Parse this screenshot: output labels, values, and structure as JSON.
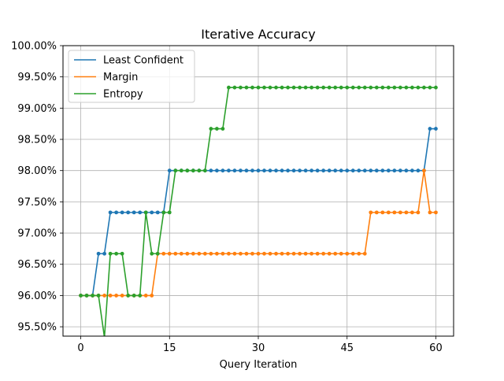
{
  "chart_data": {
    "type": "line",
    "title": "Iterative Accuracy",
    "xlabel": "Query Iteration",
    "ylabel": "",
    "xlim": [
      -3,
      63
    ],
    "ylim": [
      95.35,
      100.0
    ],
    "xticks": [
      0,
      15,
      30,
      45,
      60
    ],
    "xtick_labels": [
      "0",
      "15",
      "30",
      "45",
      "60"
    ],
    "yticks": [
      95.5,
      96.0,
      96.5,
      97.0,
      97.5,
      98.0,
      98.5,
      99.0,
      99.5,
      100.0
    ],
    "ytick_labels": [
      "95.50%",
      "96.00%",
      "96.50%",
      "97.00%",
      "97.50%",
      "98.00%",
      "98.50%",
      "99.00%",
      "99.50%",
      "100.00%"
    ],
    "grid": true,
    "legend_position": "top-left",
    "series": [
      {
        "name": "Least Confident",
        "color": "#1f77b4",
        "x": [
          0,
          1,
          2,
          3,
          4,
          5,
          6,
          7,
          8,
          9,
          10,
          11,
          12,
          13,
          14,
          15,
          16,
          17,
          18,
          19,
          20,
          21,
          22,
          23,
          24,
          25,
          26,
          27,
          28,
          29,
          30,
          31,
          32,
          33,
          34,
          35,
          36,
          37,
          38,
          39,
          40,
          41,
          42,
          43,
          44,
          45,
          46,
          47,
          48,
          49,
          50,
          51,
          52,
          53,
          54,
          55,
          56,
          57,
          58,
          59,
          60
        ],
        "values": [
          96.0,
          96.0,
          96.0,
          96.67,
          96.67,
          97.33,
          97.33,
          97.33,
          97.33,
          97.33,
          97.33,
          97.33,
          97.33,
          97.33,
          97.33,
          98.0,
          98.0,
          98.0,
          98.0,
          98.0,
          98.0,
          98.0,
          98.0,
          98.0,
          98.0,
          98.0,
          98.0,
          98.0,
          98.0,
          98.0,
          98.0,
          98.0,
          98.0,
          98.0,
          98.0,
          98.0,
          98.0,
          98.0,
          98.0,
          98.0,
          98.0,
          98.0,
          98.0,
          98.0,
          98.0,
          98.0,
          98.0,
          98.0,
          98.0,
          98.0,
          98.0,
          98.0,
          98.0,
          98.0,
          98.0,
          98.0,
          98.0,
          98.0,
          98.0,
          98.67,
          98.67
        ]
      },
      {
        "name": "Margin",
        "color": "#ff7f0e",
        "x": [
          0,
          1,
          2,
          3,
          4,
          5,
          6,
          7,
          8,
          9,
          10,
          11,
          12,
          13,
          14,
          15,
          16,
          17,
          18,
          19,
          20,
          21,
          22,
          23,
          24,
          25,
          26,
          27,
          28,
          29,
          30,
          31,
          32,
          33,
          34,
          35,
          36,
          37,
          38,
          39,
          40,
          41,
          42,
          43,
          44,
          45,
          46,
          47,
          48,
          49,
          50,
          51,
          52,
          53,
          54,
          55,
          56,
          57,
          58,
          59,
          60
        ],
        "values": [
          96.0,
          96.0,
          96.0,
          96.0,
          96.0,
          96.0,
          96.0,
          96.0,
          96.0,
          96.0,
          96.0,
          96.0,
          96.0,
          96.67,
          96.67,
          96.67,
          96.67,
          96.67,
          96.67,
          96.67,
          96.67,
          96.67,
          96.67,
          96.67,
          96.67,
          96.67,
          96.67,
          96.67,
          96.67,
          96.67,
          96.67,
          96.67,
          96.67,
          96.67,
          96.67,
          96.67,
          96.67,
          96.67,
          96.67,
          96.67,
          96.67,
          96.67,
          96.67,
          96.67,
          96.67,
          96.67,
          96.67,
          96.67,
          96.67,
          97.33,
          97.33,
          97.33,
          97.33,
          97.33,
          97.33,
          97.33,
          97.33,
          97.33,
          98.0,
          97.33,
          97.33
        ]
      },
      {
        "name": "Entropy",
        "color": "#2ca02c",
        "x": [
          0,
          1,
          2,
          3,
          4,
          5,
          6,
          7,
          8,
          9,
          10,
          11,
          12,
          13,
          14,
          15,
          16,
          17,
          18,
          19,
          20,
          21,
          22,
          23,
          24,
          25,
          26,
          27,
          28,
          29,
          30,
          31,
          32,
          33,
          34,
          35,
          36,
          37,
          38,
          39,
          40,
          41,
          42,
          43,
          44,
          45,
          46,
          47,
          48,
          49,
          50,
          51,
          52,
          53,
          54,
          55,
          56,
          57,
          58,
          59,
          60
        ],
        "values": [
          96.0,
          96.0,
          96.0,
          96.0,
          95.33,
          96.67,
          96.67,
          96.67,
          96.0,
          96.0,
          96.0,
          97.33,
          96.67,
          96.67,
          97.33,
          97.33,
          98.0,
          98.0,
          98.0,
          98.0,
          98.0,
          98.0,
          98.67,
          98.67,
          98.67,
          99.33,
          99.33,
          99.33,
          99.33,
          99.33,
          99.33,
          99.33,
          99.33,
          99.33,
          99.33,
          99.33,
          99.33,
          99.33,
          99.33,
          99.33,
          99.33,
          99.33,
          99.33,
          99.33,
          99.33,
          99.33,
          99.33,
          99.33,
          99.33,
          99.33,
          99.33,
          99.33,
          99.33,
          99.33,
          99.33,
          99.33,
          99.33,
          99.33,
          99.33,
          99.33,
          99.33
        ]
      }
    ]
  }
}
